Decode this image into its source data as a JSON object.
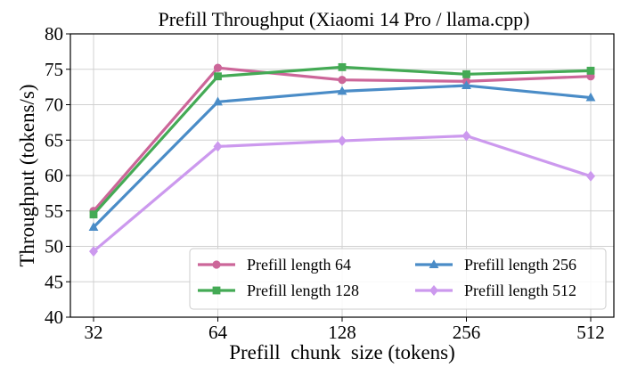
{
  "chart_data": {
    "type": "line",
    "title": "Prefill Throughput (Xiaomi 14 Pro / llama.cpp)",
    "xlabel": "Prefill  chunk  size (tokens)",
    "ylabel": "Throughput (tokens/s)",
    "categories": [
      "32",
      "64",
      "128",
      "256",
      "512"
    ],
    "ylim": [
      40,
      80
    ],
    "yticks": [
      40,
      45,
      50,
      55,
      60,
      65,
      70,
      75,
      80
    ],
    "grid": true,
    "legend_position": "lower-right",
    "series": [
      {
        "name": "Prefill length 64",
        "color": "#cc6699",
        "marker": "circle",
        "values": [
          55.0,
          75.2,
          73.5,
          73.3,
          74.0
        ]
      },
      {
        "name": "Prefill length 128",
        "color": "#44aa55",
        "marker": "square",
        "values": [
          54.5,
          74.0,
          75.3,
          74.3,
          74.8
        ]
      },
      {
        "name": "Prefill length 256",
        "color": "#4a8cc7",
        "marker": "triangle",
        "values": [
          52.7,
          70.4,
          71.9,
          72.7,
          71.0
        ]
      },
      {
        "name": "Prefill length 512",
        "color": "#cc99ee",
        "marker": "diamond",
        "values": [
          49.3,
          64.1,
          64.9,
          65.6,
          59.9
        ]
      }
    ]
  }
}
